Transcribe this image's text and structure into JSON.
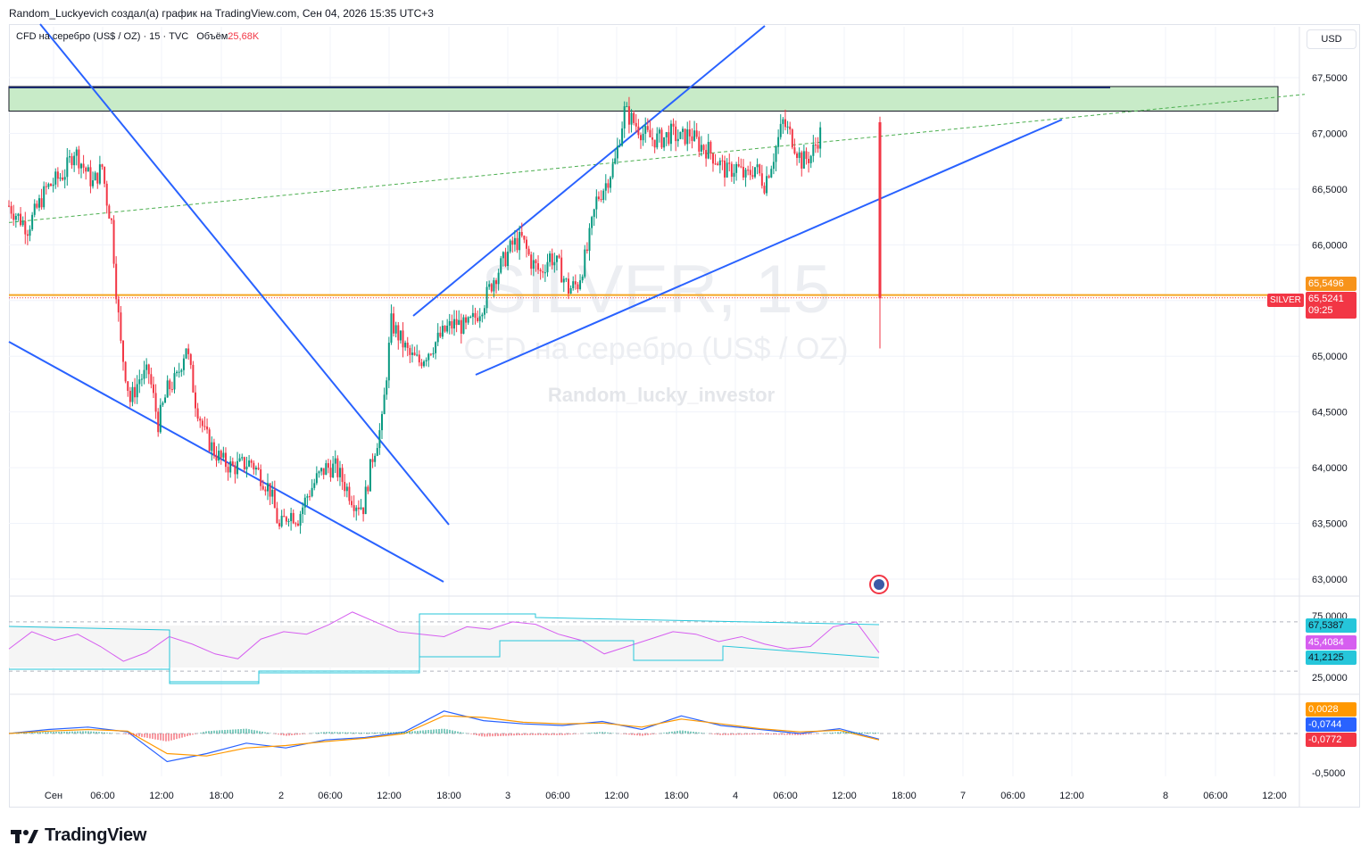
{
  "header": {
    "text": "Random_Luckyevich создал(а) график на TradingView.com, Сен 04, 2026 15:35 UTC+3"
  },
  "legend": {
    "symbol": "CFD на серебро (US$ / OZ) · 15 · TVC",
    "volume_label": "Объём",
    "volume_value": "25,68K"
  },
  "watermark": {
    "ticker": "SILVER, 15",
    "description": "CFD на серебро (US$ / OZ)",
    "author": "Random_lucky_investor"
  },
  "currency": "USD",
  "brand": "TradingView",
  "colors": {
    "up": "#089981",
    "down": "#f23645",
    "trendline": "#2962ff",
    "zone_fill": "#c8ebc8",
    "support_line": "#f5a623",
    "rsi_line": "#d65ef0",
    "rsi_band": "#26c6da",
    "macd_line": "#2962ff",
    "signal_line": "#ff9800"
  },
  "price_tags": {
    "orange": "65,5496",
    "current": "65,5241",
    "countdown": "09:25",
    "symbol": "SILVER",
    "rsi_upper": "67,5387",
    "rsi_value": "45,4084",
    "rsi_lower": "41,2125",
    "macd_hist": "0,0028",
    "macd_line": "-0,0744",
    "macd_signal": "-0,0772"
  },
  "chart_data": [
    {
      "type": "candlestick",
      "title": "CFD на серебро (US$ / OZ) · 15 · TVC",
      "xlabel": "",
      "ylabel": "",
      "ylim": [
        62.85,
        67.75
      ],
      "yticks": [
        "67,5000",
        "67,0000",
        "66,5000",
        "66,0000",
        "65,5000",
        "65,0000",
        "64,5000",
        "64,0000",
        "63,5000",
        "63,0000"
      ],
      "xticks": [
        "Сен",
        "06:00",
        "12:00",
        "18:00",
        "2",
        "06:00",
        "12:00",
        "18:00",
        "3",
        "06:00",
        "12:00",
        "18:00",
        "4",
        "06:00",
        "12:00",
        "18:00",
        "7",
        "06:00",
        "12:00",
        "8",
        "06:00",
        "12:00"
      ],
      "close_path": [
        [
          "Сен 00:00",
          66.35
        ],
        [
          "Сен 02:00",
          66.15
        ],
        [
          "Сен 04:00",
          66.5
        ],
        [
          "Сен 06:00",
          66.65
        ],
        [
          "Сен 07:00",
          66.85
        ],
        [
          "Сен 08:00",
          66.7
        ],
        [
          "Сен 09:00",
          66.55
        ],
        [
          "Сен 10:00",
          66.7
        ],
        [
          "Сен 10:30",
          66.4
        ],
        [
          "Сен 11:00",
          66.2
        ],
        [
          "Сен 11:30",
          65.6
        ],
        [
          "Сен 12:00",
          65.1
        ],
        [
          "Сен 13:00",
          64.6
        ],
        [
          "Сен 14:00",
          64.8
        ],
        [
          "Сен 15:00",
          64.85
        ],
        [
          "Сен 16:00",
          64.4
        ],
        [
          "Сен 17:00",
          64.7
        ],
        [
          "Сен 18:00",
          64.8
        ],
        [
          "Сен 19:00",
          65.1
        ],
        [
          "Сен 20:00",
          64.6
        ],
        [
          "Сен 21:00",
          64.3
        ],
        [
          "Сен 22:00",
          64.15
        ],
        [
          "Сен 23:00",
          64.05
        ],
        [
          "2 00:00",
          64.0
        ],
        [
          "2 02:00",
          64.05
        ],
        [
          "2 04:00",
          63.8
        ],
        [
          "2 05:00",
          63.45
        ],
        [
          "2 06:00",
          63.6
        ],
        [
          "2 07:00",
          63.55
        ],
        [
          "2 08:00",
          63.75
        ],
        [
          "2 09:00",
          63.9
        ],
        [
          "2 10:00",
          64.0
        ],
        [
          "2 11:00",
          64.0
        ],
        [
          "2 12:00",
          63.85
        ],
        [
          "2 13:00",
          63.7
        ],
        [
          "2 14:00",
          63.65
        ],
        [
          "2 15:00",
          64.1
        ],
        [
          "2 16:00",
          64.4
        ],
        [
          "2 17:00",
          65.3
        ],
        [
          "2 18:00",
          65.15
        ],
        [
          "2 19:00",
          65.0
        ],
        [
          "2 20:00",
          64.95
        ],
        [
          "2 21:00",
          65.05
        ],
        [
          "2 22:00",
          65.15
        ],
        [
          "2 23:00",
          65.25
        ],
        [
          "3 00:00",
          65.3
        ],
        [
          "3 01:00",
          65.25
        ],
        [
          "3 02:00",
          65.35
        ],
        [
          "3 03:00",
          65.5
        ],
        [
          "3 04:00",
          65.7
        ],
        [
          "3 05:00",
          65.85
        ],
        [
          "3 06:00",
          66.0
        ],
        [
          "3 07:00",
          66.05
        ],
        [
          "3 08:00",
          65.85
        ],
        [
          "3 09:00",
          65.75
        ],
        [
          "3 10:00",
          65.9
        ],
        [
          "3 11:00",
          65.8
        ],
        [
          "3 12:00",
          65.6
        ],
        [
          "3 13:00",
          65.65
        ],
        [
          "3 14:00",
          65.95
        ],
        [
          "3 15:00",
          66.4
        ],
        [
          "3 16:00",
          66.55
        ],
        [
          "3 17:00",
          66.75
        ],
        [
          "3 18:00",
          67.2
        ],
        [
          "3 19:00",
          67.1
        ],
        [
          "3 20:00",
          67.0
        ],
        [
          "3 21:00",
          66.95
        ],
        [
          "3 22:00",
          66.95
        ],
        [
          "3 23:00",
          67.0
        ],
        [
          "4 00:00",
          66.95
        ],
        [
          "4 01:00",
          67.0
        ],
        [
          "4 02:00",
          66.9
        ],
        [
          "4 03:00",
          66.85
        ],
        [
          "4 04:00",
          66.75
        ],
        [
          "4 05:00",
          66.65
        ],
        [
          "4 06:00",
          66.7
        ],
        [
          "4 07:00",
          66.6
        ],
        [
          "4 08:00",
          66.7
        ],
        [
          "4 09:00",
          66.55
        ],
        [
          "4 10:00",
          66.8
        ],
        [
          "4 11:00",
          67.1
        ],
        [
          "4 12:00",
          66.95
        ],
        [
          "4 13:00",
          66.75
        ],
        [
          "4 14:00",
          66.8
        ],
        [
          "4 15:00",
          67.0
        ],
        [
          "4 15:15",
          65.52
        ]
      ],
      "last_candle": {
        "time": "4 15:30",
        "open": 67.1,
        "high": 67.15,
        "low": 65.07,
        "close": 65.52
      },
      "annotations": {
        "resistance_zone": [
          67.2,
          67.42
        ],
        "support_line": 65.5496,
        "current_price": 65.5241
      }
    },
    {
      "type": "line",
      "title": "RSI",
      "ylim": [
        25,
        75
      ],
      "yticks": [
        "75,0000",
        "25,0000"
      ],
      "series": [
        {
          "values": [
            48,
            62,
            55,
            60,
            50,
            38,
            45,
            58,
            52,
            44,
            40,
            56,
            62,
            60,
            68,
            78,
            70,
            62,
            60,
            58,
            66,
            64,
            70,
            68,
            60,
            55,
            44,
            50,
            56,
            62,
            60,
            54,
            58,
            52,
            48,
            50,
            66,
            70,
            45
          ]
        }
      ]
    },
    {
      "type": "line",
      "title": "MACD",
      "yticks": [
        "-0,5000"
      ],
      "series": [
        {
          "values": [
            0.0,
            0.05,
            0.08,
            0.02,
            -0.35,
            -0.25,
            -0.12,
            -0.18,
            -0.08,
            -0.05,
            0.02,
            0.28,
            0.16,
            0.12,
            0.1,
            0.15,
            0.05,
            0.22,
            0.1,
            0.05,
            0.0,
            0.06,
            -0.07
          ]
        },
        {
          "values": [
            0.0,
            0.03,
            0.05,
            0.03,
            -0.25,
            -0.28,
            -0.18,
            -0.15,
            -0.1,
            -0.06,
            0.0,
            0.22,
            0.2,
            0.14,
            0.12,
            0.13,
            0.08,
            0.18,
            0.12,
            0.06,
            0.02,
            0.04,
            -0.08
          ]
        }
      ]
    }
  ]
}
